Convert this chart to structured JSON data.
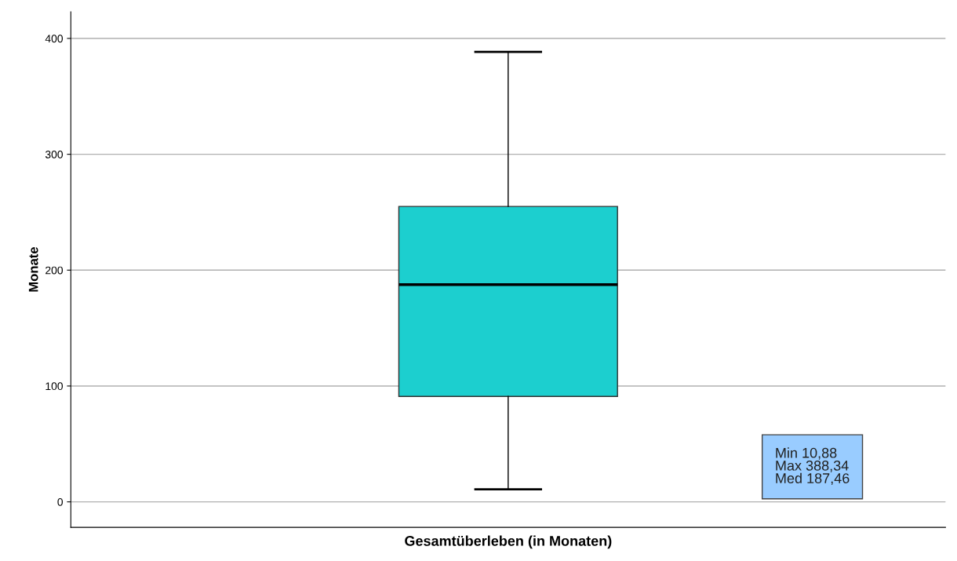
{
  "chart_data": {
    "type": "box",
    "ylabel": "Monate",
    "xlabel": "Gesamtüberleben (in Monaten)",
    "categories": [
      null
    ],
    "boxes": [
      {
        "low": 10.88,
        "q1": 91,
        "median": 187.46,
        "q3": 255,
        "high": 388.34
      }
    ],
    "color": "#1ccfcf",
    "ylim": [
      -22,
      423
    ],
    "yticks": [
      0,
      100,
      200,
      300,
      400
    ],
    "grid": "y",
    "annotations": [
      "Min 10,88\nMax 388,34\nMed 187,46"
    ]
  }
}
